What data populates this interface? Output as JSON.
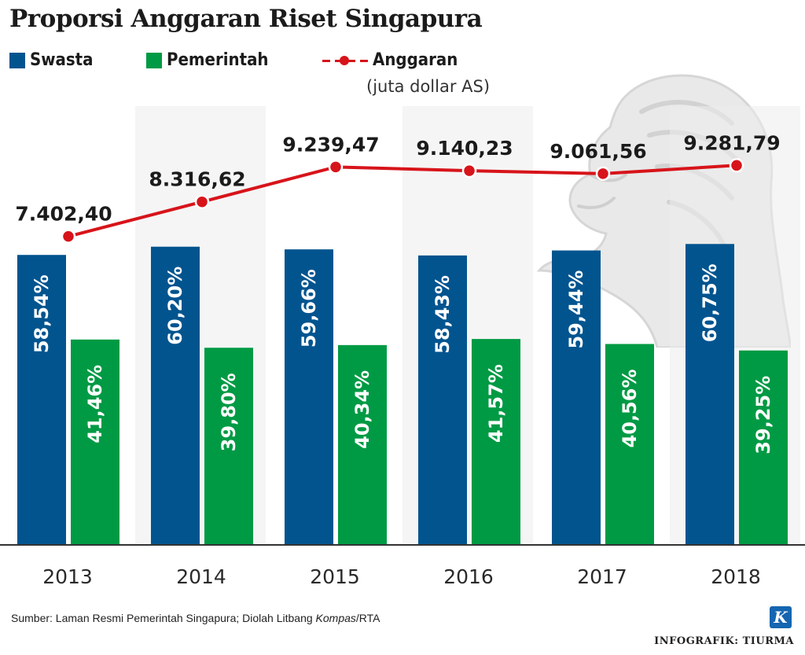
{
  "title": "Proporsi Anggaran Riset Singapura",
  "legend": {
    "swasta": "Swasta",
    "pemerintah": "Pemerintah",
    "anggaran": "Anggaran",
    "anggaran_unit": "(juta dollar AS)"
  },
  "colors": {
    "swasta": "#02548f",
    "pemerintah": "#009a44",
    "anggaran": "#d7141a",
    "band": "#ececec"
  },
  "chart_data": {
    "type": "bar",
    "categories": [
      "2013",
      "2014",
      "2015",
      "2016",
      "2017",
      "2018"
    ],
    "series": [
      {
        "name": "Swasta",
        "values": [
          58.54,
          60.2,
          59.66,
          58.43,
          59.44,
          60.75
        ],
        "labels": [
          "58,54%",
          "60,20%",
          "59,66%",
          "58,43%",
          "59,44%",
          "60,75%"
        ]
      },
      {
        "name": "Pemerintah",
        "values": [
          41.46,
          39.8,
          40.34,
          41.57,
          40.56,
          39.25
        ],
        "labels": [
          "41,46%",
          "39,80%",
          "40,34%",
          "41,57%",
          "40,56%",
          "39,25%"
        ]
      }
    ],
    "line": {
      "name": "Anggaran",
      "values": [
        7402.4,
        8316.62,
        9239.47,
        9140.23,
        9061.56,
        9281.79
      ],
      "labels": [
        "7.402,40",
        "8.316,62",
        "9.239,47",
        "9.140,23",
        "9.061,56",
        "9.281,79"
      ]
    },
    "ylim": [
      0,
      62
    ]
  },
  "source": {
    "prefix": "Sumber: Laman Resmi Pemerintah Singapura; Diolah Litbang ",
    "italic": "Kompas",
    "suffix": "/RTA"
  },
  "credit": "INFOGRAFIK: TIURMA",
  "logo_letter": "K"
}
